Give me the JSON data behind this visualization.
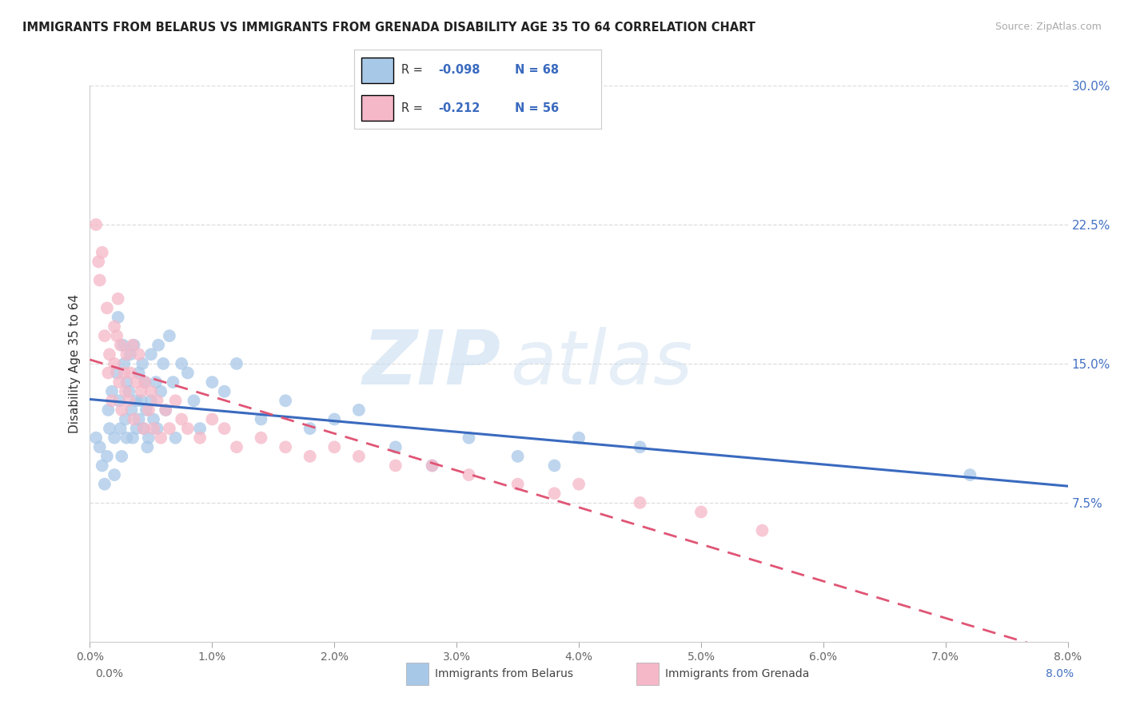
{
  "title": "IMMIGRANTS FROM BELARUS VS IMMIGRANTS FROM GRENADA DISABILITY AGE 35 TO 64 CORRELATION CHART",
  "source": "Source: ZipAtlas.com",
  "ylabel": "Disability Age 35 to 64",
  "xmin": 0.0,
  "xmax": 8.0,
  "ymin": 0.0,
  "ymax": 30.0,
  "yticks_right": [
    7.5,
    15.0,
    22.5,
    30.0
  ],
  "ytick_labels_right": [
    "7.5%",
    "15.0%",
    "22.5%",
    "30.0%"
  ],
  "legend_r_belarus": "-0.098",
  "legend_n_belarus": "68",
  "legend_r_grenada": "-0.212",
  "legend_n_grenada": "56",
  "color_belarus": "#a8c8e8",
  "color_grenada": "#f5b8c8",
  "color_trendline_belarus": "#3a6abf",
  "color_trendline_grenada": "#e05575",
  "watermark_zip": "ZIP",
  "watermark_atlas": "atlas",
  "belarus_x": [
    0.05,
    0.08,
    0.1,
    0.12,
    0.14,
    0.15,
    0.16,
    0.18,
    0.2,
    0.2,
    0.22,
    0.23,
    0.24,
    0.25,
    0.26,
    0.27,
    0.28,
    0.29,
    0.3,
    0.3,
    0.32,
    0.33,
    0.34,
    0.35,
    0.36,
    0.38,
    0.38,
    0.4,
    0.4,
    0.42,
    0.43,
    0.44,
    0.45,
    0.46,
    0.47,
    0.48,
    0.5,
    0.5,
    0.52,
    0.54,
    0.55,
    0.56,
    0.58,
    0.6,
    0.62,
    0.65,
    0.68,
    0.7,
    0.75,
    0.8,
    0.85,
    0.9,
    1.0,
    1.1,
    1.2,
    1.4,
    1.6,
    1.8,
    2.0,
    2.2,
    2.5,
    2.8,
    3.1,
    3.5,
    3.8,
    4.0,
    4.5,
    7.2
  ],
  "belarus_y": [
    11.0,
    10.5,
    9.5,
    8.5,
    10.0,
    12.5,
    11.5,
    13.5,
    11.0,
    9.0,
    14.5,
    17.5,
    13.0,
    11.5,
    10.0,
    16.0,
    15.0,
    12.0,
    14.0,
    11.0,
    13.5,
    15.5,
    12.5,
    11.0,
    16.0,
    13.0,
    11.5,
    14.5,
    12.0,
    13.0,
    15.0,
    11.5,
    14.0,
    12.5,
    10.5,
    11.0,
    15.5,
    13.0,
    12.0,
    14.0,
    11.5,
    16.0,
    13.5,
    15.0,
    12.5,
    16.5,
    14.0,
    11.0,
    15.0,
    14.5,
    13.0,
    11.5,
    14.0,
    13.5,
    15.0,
    12.0,
    13.0,
    11.5,
    12.0,
    12.5,
    10.5,
    9.5,
    11.0,
    10.0,
    9.5,
    11.0,
    10.5,
    9.0
  ],
  "grenada_x": [
    0.05,
    0.07,
    0.08,
    0.1,
    0.12,
    0.14,
    0.15,
    0.16,
    0.18,
    0.2,
    0.2,
    0.22,
    0.23,
    0.24,
    0.25,
    0.26,
    0.28,
    0.29,
    0.3,
    0.32,
    0.33,
    0.35,
    0.36,
    0.38,
    0.4,
    0.42,
    0.44,
    0.45,
    0.48,
    0.5,
    0.52,
    0.55,
    0.58,
    0.62,
    0.65,
    0.7,
    0.75,
    0.8,
    0.9,
    1.0,
    1.1,
    1.2,
    1.4,
    1.6,
    1.8,
    2.0,
    2.2,
    2.5,
    2.8,
    3.1,
    3.5,
    3.8,
    4.0,
    4.5,
    5.0,
    5.5
  ],
  "grenada_y": [
    22.5,
    20.5,
    19.5,
    21.0,
    16.5,
    18.0,
    14.5,
    15.5,
    13.0,
    17.0,
    15.0,
    16.5,
    18.5,
    14.0,
    16.0,
    12.5,
    14.5,
    13.5,
    15.5,
    13.0,
    14.5,
    16.0,
    12.0,
    14.0,
    15.5,
    13.5,
    11.5,
    14.0,
    12.5,
    13.5,
    11.5,
    13.0,
    11.0,
    12.5,
    11.5,
    13.0,
    12.0,
    11.5,
    11.0,
    12.0,
    11.5,
    10.5,
    11.0,
    10.5,
    10.0,
    10.5,
    10.0,
    9.5,
    9.5,
    9.0,
    8.5,
    8.0,
    8.5,
    7.5,
    7.0,
    6.0
  ]
}
